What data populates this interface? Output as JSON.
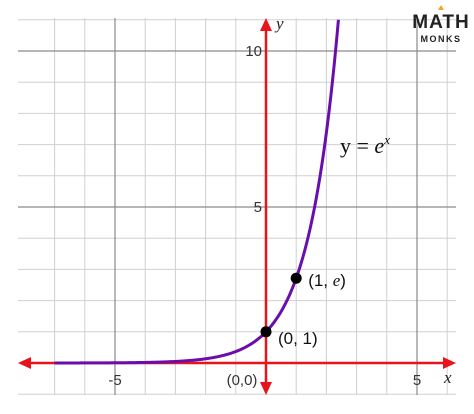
{
  "brand": {
    "name_top": "MATH",
    "name_bottom": "MONKS",
    "accent": "#f5a623"
  },
  "chart_data": {
    "type": "line",
    "title": "",
    "equation": {
      "lhs": "y = ",
      "base": "e",
      "exponent": "x"
    },
    "xlabel": "x",
    "ylabel": "y",
    "xlim": [
      -7.2,
      6.1
    ],
    "ylim": [
      -1.1,
      11.2
    ],
    "x_ticks": [
      {
        "value": -5,
        "label": "-5"
      },
      {
        "value": 5,
        "label": "5"
      }
    ],
    "y_ticks": [
      {
        "value": 5,
        "label": "5"
      },
      {
        "value": 10,
        "label": "10"
      }
    ],
    "origin_label": "(0,0)",
    "grid": true,
    "series": [
      {
        "function": "exp",
        "color": "#6a0dad",
        "x": [
          -7.0,
          -6.0,
          -5.0,
          -4.0,
          -3.0,
          -2.0,
          -1.0,
          0.0,
          0.5,
          1.0,
          1.5,
          2.0,
          2.2,
          2.3
        ],
        "y": [
          0.001,
          0.002,
          0.007,
          0.018,
          0.05,
          0.135,
          0.368,
          1.0,
          1.649,
          2.718,
          4.482,
          7.389,
          9.025,
          9.974
        ]
      }
    ],
    "points": [
      {
        "x": 0,
        "y": 1,
        "label": "(0, 1)"
      },
      {
        "x": 1,
        "y": 2.718,
        "label_main": "(1, ",
        "label_var": "e",
        "label_end": ")"
      }
    ],
    "axis_color": "#e8141b",
    "grid_major_color": "#8a8a8a",
    "grid_minor_color": "#d0d0d0"
  }
}
